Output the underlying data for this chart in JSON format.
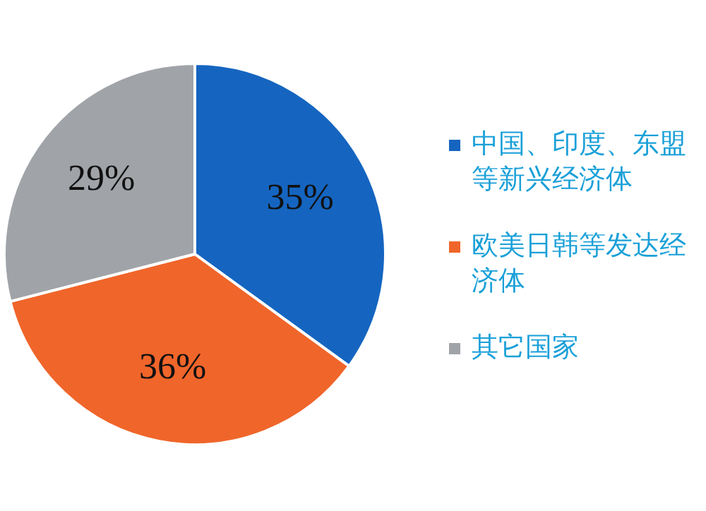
{
  "chart_data": {
    "type": "pie",
    "categories": [
      "中国、印度、东盟等新兴经济体",
      "欧美日韩等发达经济体",
      "其它国家"
    ],
    "values": [
      35,
      36,
      29
    ],
    "colors": [
      "#1565c0",
      "#f0652a",
      "#a0a3a8"
    ],
    "value_labels": [
      "35%",
      "36%",
      "29%"
    ],
    "legend": "right"
  }
}
